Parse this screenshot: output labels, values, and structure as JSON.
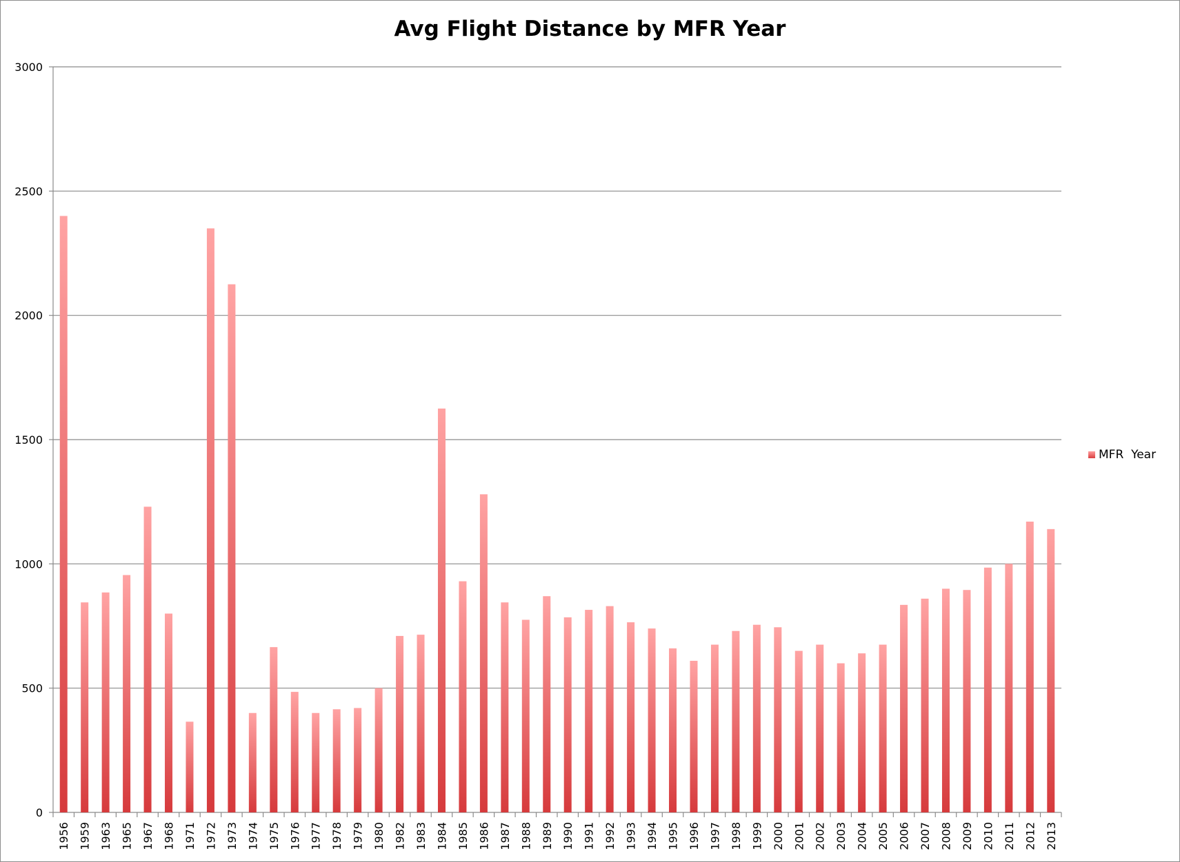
{
  "chart_data": {
    "type": "bar",
    "title": "Avg Flight Distance by MFR Year",
    "xlabel": "",
    "ylabel": "",
    "ylim": [
      0,
      3000
    ],
    "yticks": [
      0,
      500,
      1000,
      1500,
      2000,
      2500,
      3000
    ],
    "grid": true,
    "legend_position": "right",
    "categories": [
      "1956",
      "1959",
      "1963",
      "1965",
      "1967",
      "1968",
      "1971",
      "1972",
      "1973",
      "1974",
      "1975",
      "1976",
      "1977",
      "1978",
      "1979",
      "1980",
      "1982",
      "1983",
      "1984",
      "1985",
      "1986",
      "1987",
      "1988",
      "1989",
      "1990",
      "1991",
      "1992",
      "1993",
      "1994",
      "1995",
      "1996",
      "1997",
      "1998",
      "1999",
      "2000",
      "2001",
      "2002",
      "2003",
      "2004",
      "2005",
      "2006",
      "2007",
      "2008",
      "2009",
      "2010",
      "2011",
      "2012",
      "2013"
    ],
    "series": [
      {
        "name": "MFR  Year",
        "color_top": "#ffa3a3",
        "color_bottom": "#d63a3c",
        "values": [
          2400,
          845,
          885,
          955,
          1230,
          800,
          365,
          2350,
          2125,
          400,
          665,
          485,
          400,
          415,
          420,
          500,
          710,
          715,
          1625,
          930,
          1280,
          845,
          775,
          870,
          785,
          815,
          830,
          765,
          740,
          660,
          610,
          675,
          730,
          755,
          745,
          650,
          675,
          600,
          640,
          675,
          835,
          860,
          900,
          895,
          985,
          1000,
          1170,
          1140
        ]
      }
    ]
  }
}
